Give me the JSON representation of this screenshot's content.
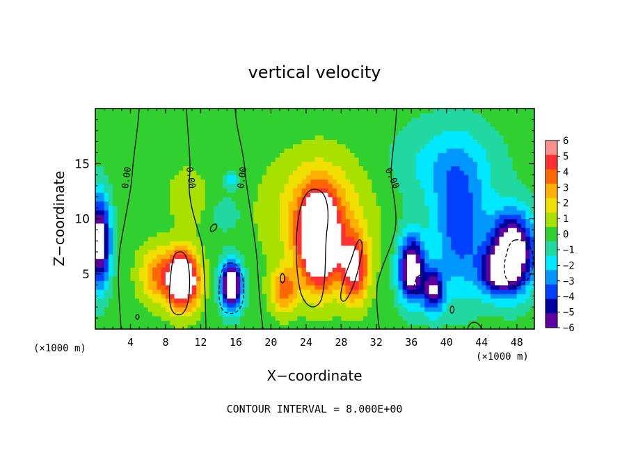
{
  "chart_data": {
    "type": "heatmap",
    "title": "vertical velocity",
    "xlabel": "X−coordinate",
    "ylabel": "Z−coordinate",
    "x_unit_left": "(×1000 m)",
    "x_unit_right": "(×1000 m)",
    "xlim": [
      0,
      50
    ],
    "ylim": [
      0,
      20
    ],
    "xticks": [
      "4",
      "8",
      "12",
      "16",
      "20",
      "24",
      "28",
      "32",
      "36",
      "40",
      "44",
      "48"
    ],
    "yticks": [
      "5",
      "10",
      "15"
    ],
    "colorbar": {
      "min": -6,
      "max": 6,
      "labels": [
        "6",
        "5",
        "4",
        "3",
        "2",
        "1",
        "0",
        "−1",
        "−2",
        "−3",
        "−4",
        "−5",
        "−6"
      ],
      "colors": [
        "#ff9090",
        "#ff3030",
        "#ff6600",
        "#ffb000",
        "#f0e000",
        "#a8e000",
        "#30d030",
        "#20d8a0",
        "#00e8ff",
        "#0098ff",
        "#0040ff",
        "#0000a0",
        "#6000a0"
      ],
      "out_of_range": "#ffffff"
    },
    "contour_labels": [
      "0.00",
      "0.00",
      "0.00",
      "0.00"
    ],
    "contour_interval_text": "CONTOUR INTERVAL =  8.000E+00",
    "field": {
      "background": 0.5,
      "blobs": [
        {
          "x": 25.5,
          "z": 8.0,
          "sx": 2.2,
          "sz": 4.2,
          "a": 9
        },
        {
          "x": 25.5,
          "z": 10.5,
          "sx": 5.5,
          "sz": 5.0,
          "a": 3
        },
        {
          "x": 29.5,
          "z": 5.5,
          "sx": 1.6,
          "sz": 3.0,
          "a": 6
        },
        {
          "x": 21.5,
          "z": 3.5,
          "sx": 1.5,
          "sz": 2.0,
          "a": 4
        },
        {
          "x": 10.0,
          "z": 4.5,
          "sx": 1.8,
          "sz": 2.6,
          "a": 9
        },
        {
          "x": 7.0,
          "z": 5.0,
          "sx": 2.0,
          "sz": 2.5,
          "a": 3.5
        },
        {
          "x": 10.5,
          "z": 12.0,
          "sx": 2.0,
          "sz": 2.5,
          "a": 1.5
        },
        {
          "x": 15.5,
          "z": 4.0,
          "sx": 1.2,
          "sz": 2.2,
          "a": -9
        },
        {
          "x": 15.0,
          "z": 10.5,
          "sx": 1.5,
          "sz": 1.5,
          "a": -1.5
        },
        {
          "x": 15.5,
          "z": 13.5,
          "sx": 1.0,
          "sz": 0.7,
          "a": -2.5
        },
        {
          "x": 0.5,
          "z": 8.0,
          "sx": 1.2,
          "sz": 4.0,
          "a": -8
        },
        {
          "x": 36.0,
          "z": 5.5,
          "sx": 1.5,
          "sz": 3.0,
          "a": -8
        },
        {
          "x": 38.5,
          "z": 3.5,
          "sx": 1.2,
          "sz": 2.0,
          "a": -6
        },
        {
          "x": 41.5,
          "z": 9.0,
          "sx": 3.0,
          "sz": 6.0,
          "a": -4
        },
        {
          "x": 47.5,
          "z": 7.0,
          "sx": 2.5,
          "sz": 3.5,
          "a": -9
        },
        {
          "x": 45.5,
          "z": 5.0,
          "sx": 2.0,
          "sz": 2.0,
          "a": -4
        },
        {
          "x": 40.0,
          "z": 15.0,
          "sx": 6.0,
          "sz": 4.0,
          "a": -2
        }
      ]
    }
  }
}
